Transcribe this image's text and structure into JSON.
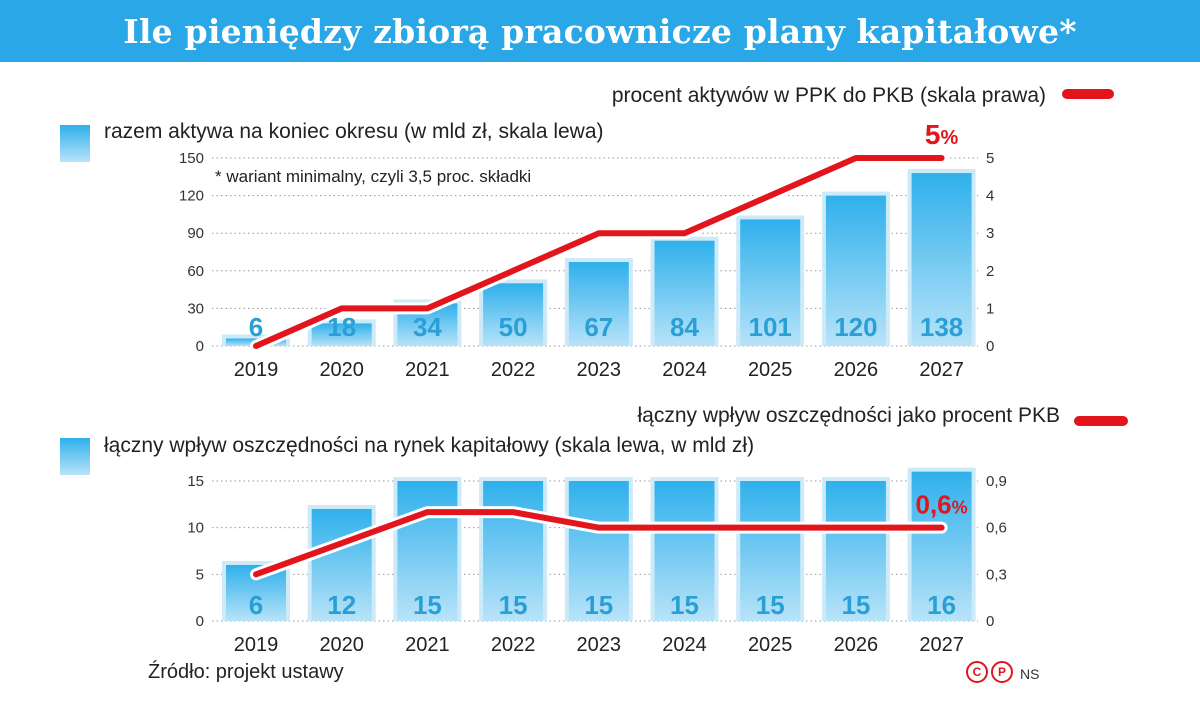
{
  "title": "Ile pieniędzy zbiorą pracownicze plany kapitałowe*",
  "footer": {
    "source": "Źródło: projekt ustawy",
    "agency": "NS",
    "icons": [
      "copyright-icon",
      "p-icon"
    ]
  },
  "colors": {
    "bar": "#3fb7ee",
    "line": "#e1151b",
    "title_bg": "#2aa7e6"
  },
  "chart_data": [
    {
      "type": "bar",
      "categories": [
        "2019",
        "2020",
        "2021",
        "2022",
        "2023",
        "2024",
        "2025",
        "2026",
        "2027"
      ],
      "series": [
        {
          "name": "razem aktywa na koniec okresu (w mld zł, skala lewa)",
          "axis": "left",
          "values": [
            6,
            18,
            34,
            50,
            67,
            84,
            101,
            120,
            138
          ],
          "labels": [
            "6",
            "18",
            "34",
            "50",
            "67",
            "84",
            "101",
            "120",
            "138"
          ]
        },
        {
          "name": "procent aktywów w PPK do PKB (skala prawa)",
          "type": "line",
          "axis": "right",
          "values": [
            0,
            1,
            1,
            2,
            3,
            3,
            4,
            5,
            5
          ]
        }
      ],
      "ylim": [
        0,
        150
      ],
      "yticks": [
        "0",
        "30",
        "60",
        "90",
        "120",
        "150"
      ],
      "ytick_values": [
        0,
        30,
        60,
        90,
        120,
        150
      ],
      "y2lim": [
        0,
        5
      ],
      "y2ticks": [
        "0",
        "1",
        "2",
        "3",
        "4",
        "5"
      ],
      "y2tick_values": [
        0,
        1,
        2,
        3,
        4,
        5
      ],
      "annotation": {
        "value": "5",
        "unit": "%"
      },
      "note": "* wariant minimalny, czyli 3,5 proc. składki",
      "grid": true,
      "legend": "top"
    },
    {
      "type": "bar",
      "categories": [
        "2019",
        "2020",
        "2021",
        "2022",
        "2023",
        "2024",
        "2025",
        "2026",
        "2027"
      ],
      "series": [
        {
          "name": "łączny wpływ oszczędności na rynek kapitałowy (skala lewa, w mld zł)",
          "axis": "left",
          "values": [
            6,
            12,
            15,
            15,
            15,
            15,
            15,
            15,
            16
          ],
          "labels": [
            "6",
            "12",
            "15",
            "15",
            "15",
            "15",
            "15",
            "15",
            "16"
          ]
        },
        {
          "name": "łączny wpływ oszczędności jako procent PKB",
          "type": "line",
          "axis": "right",
          "values": [
            0.3,
            0.5,
            0.7,
            0.7,
            0.6,
            0.6,
            0.6,
            0.6,
            0.6
          ]
        }
      ],
      "ylim": [
        0,
        15
      ],
      "yticks": [
        "0",
        "5",
        "10",
        "15"
      ],
      "ytick_values": [
        0,
        5,
        10,
        15
      ],
      "y2lim": [
        0,
        0.9
      ],
      "y2ticks": [
        "0",
        "0,3",
        "0,6",
        "0,9"
      ],
      "y2tick_values": [
        0,
        0.3,
        0.6,
        0.9
      ],
      "annotation": {
        "value": "0,6",
        "unit": "%"
      },
      "grid": true,
      "legend": "top"
    }
  ]
}
